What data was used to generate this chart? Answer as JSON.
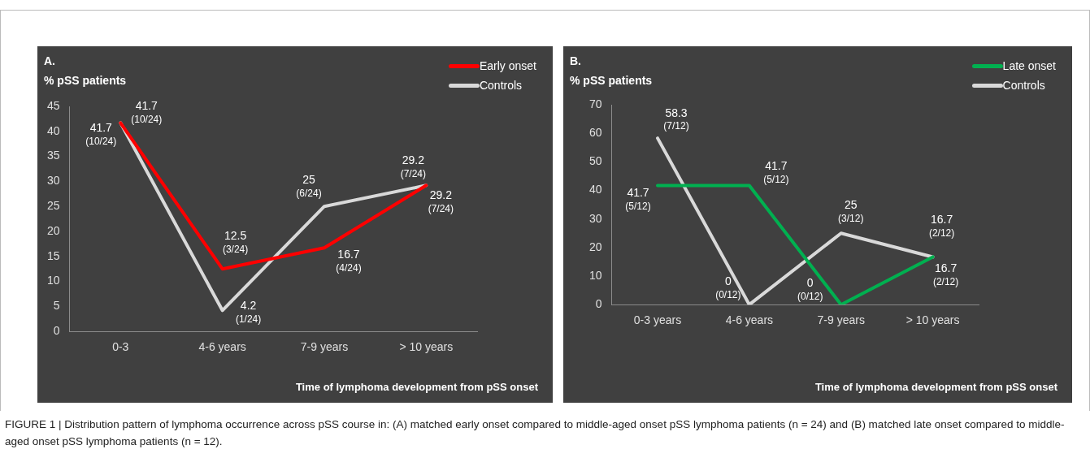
{
  "chart_data": [
    {
      "type": "line",
      "title": "A.",
      "ylabel": "% pSS patients",
      "xlabel": "Time of lymphoma development from pSS onset",
      "categories": [
        "0-3",
        "4-6 years",
        "7-9 years",
        "> 10 years"
      ],
      "series": [
        {
          "name": "Early onset",
          "color": "#ff0000",
          "values": [
            41.7,
            12.5,
            16.7,
            29.2
          ],
          "value_labels": [
            "41.7 (10/24)",
            "12.5 (3/24)",
            "16.7 (4/24)",
            "29.2 (7/24)"
          ]
        },
        {
          "name": "Controls",
          "color": "#d9d9d9",
          "values": [
            41.7,
            4.2,
            25,
            29.2
          ],
          "value_labels": [
            "41.7 (10/24)",
            "4.2 (1/24)",
            "25 (6/24)",
            "29.2 (7/24)"
          ]
        }
      ],
      "ylim": [
        0,
        45
      ],
      "yticks": [
        0,
        5,
        10,
        15,
        20,
        25,
        30,
        35,
        40,
        45
      ],
      "grid": false,
      "legend": "top right",
      "marker": "none",
      "line_style": "solid",
      "annotations": [
        "FIGURE 1 | Distribution pattern of lymphoma occurrence across pSS course in: (A) matched early onset compared to middle-aged onset pSS lymphoma patients (n = 24) and (B) matched late onset compared to middle-aged onset pSS lymphoma patients (n = 12)."
      ]
    },
    {
      "type": "line",
      "title": "B.",
      "ylabel": "% pSS patients",
      "xlabel": "Time of lymphoma development from pSS onset",
      "categories": [
        "0-3 years",
        "4-6 years",
        "7-9 years",
        "> 10 years"
      ],
      "series": [
        {
          "name": "Late onset",
          "color": "#00b050",
          "values": [
            41.7,
            41.7,
            0,
            16.7
          ],
          "value_labels": [
            "41.7 (5/12)",
            "41.7 (5/12)",
            "0 (0/12)",
            "16.7 (2/12)"
          ]
        },
        {
          "name": "Controls",
          "color": "#d9d9d9",
          "values": [
            58.3,
            0,
            25,
            16.7
          ],
          "value_labels": [
            "58.3 (7/12)",
            "0 (0/12)",
            "25 (3/12)",
            "16.7 (2/12)"
          ]
        }
      ],
      "ylim": [
        0,
        70
      ],
      "yticks": [
        0,
        10,
        20,
        30,
        40,
        50,
        60,
        70
      ],
      "grid": false,
      "legend": "top right",
      "marker": "none",
      "line_style": "solid"
    }
  ]
}
